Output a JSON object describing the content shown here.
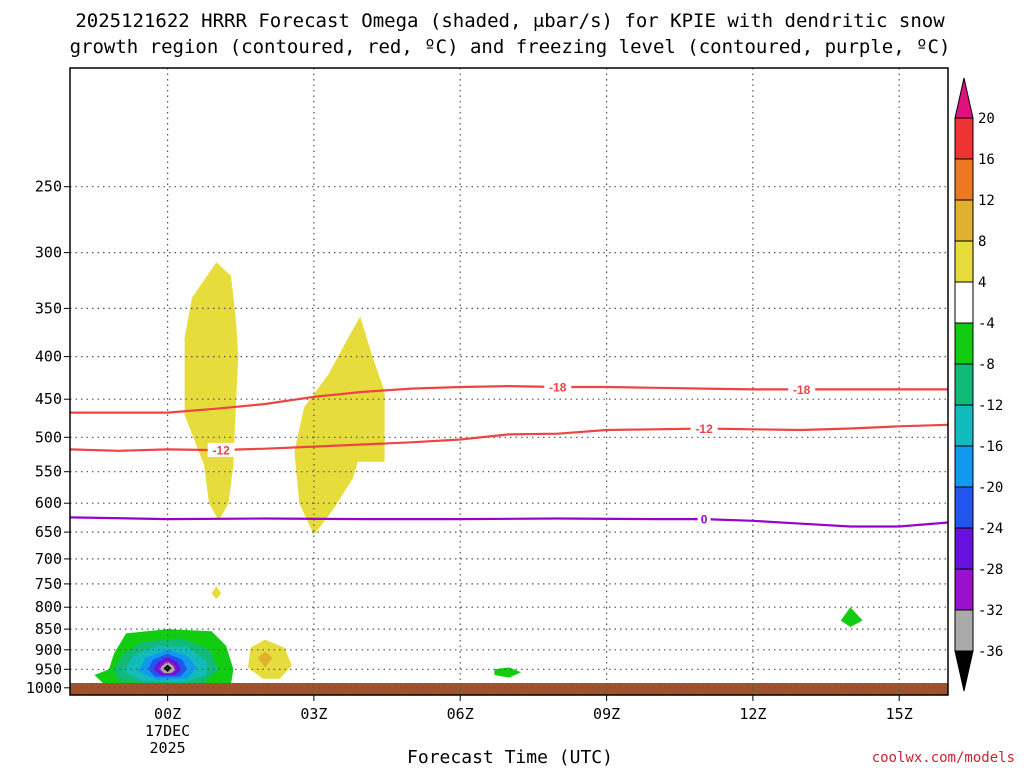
{
  "title_line1": "2025121622 HRRR Forecast Omega (shaded, μbar/s) for KPIE with dendritic snow",
  "title_line2": "growth region (contoured, red, ºC) and freezing level (contoured, purple, ºC)",
  "credit": "coolwx.com/models",
  "colors": {
    "credit": "#cc2233",
    "ground": "#a0522d",
    "temp_contour": "#ee4444",
    "freezing_contour": "#9900cc"
  },
  "chart_data": {
    "type": "heatmap",
    "title": "2025121622 HRRR Forecast Omega (shaded, μbar/s) for KPIE with dendritic snow growth region (contoured, red, ºC) and freezing level (contoured, purple, ºC)",
    "xlabel": "Forecast Time (UTC)",
    "ylabel": "",
    "x_range_hours": [
      -2,
      16
    ],
    "y_range_hpa": [
      1020,
      180
    ],
    "y_scale": "log",
    "y_ticks": [
      250,
      300,
      350,
      400,
      450,
      500,
      550,
      600,
      650,
      700,
      750,
      800,
      850,
      900,
      950,
      1000
    ],
    "x_ticks": [
      {
        "hour": 0,
        "label": "00Z",
        "sub1": "17DEC",
        "sub2": "2025"
      },
      {
        "hour": 3,
        "label": "03Z"
      },
      {
        "hour": 6,
        "label": "06Z"
      },
      {
        "hour": 9,
        "label": "09Z"
      },
      {
        "hour": 12,
        "label": "12Z"
      },
      {
        "hour": 15,
        "label": "15Z"
      }
    ],
    "grid": true,
    "colorbar": {
      "labels": [
        "20",
        "16",
        "12",
        "8",
        "4",
        "-4",
        "-8",
        "-12",
        "-16",
        "-20",
        "-24",
        "-28",
        "-32",
        "-36"
      ],
      "bins": [
        {
          "range": [
            20,
            99
          ],
          "color": "#e0117f"
        },
        {
          "range": [
            16,
            20
          ],
          "color": "#ee3333"
        },
        {
          "range": [
            12,
            16
          ],
          "color": "#ee7722"
        },
        {
          "range": [
            8,
            12
          ],
          "color": "#e0b030"
        },
        {
          "range": [
            4,
            8
          ],
          "color": "#e6dc3c"
        },
        {
          "range": [
            -4,
            4
          ],
          "color": "#ffffff"
        },
        {
          "range": [
            -8,
            -4
          ],
          "color": "#11cc11"
        },
        {
          "range": [
            -12,
            -8
          ],
          "color": "#11bb77"
        },
        {
          "range": [
            -16,
            -12
          ],
          "color": "#11bbbb"
        },
        {
          "range": [
            -20,
            -16
          ],
          "color": "#1199ee"
        },
        {
          "range": [
            -24,
            -20
          ],
          "color": "#2255ee"
        },
        {
          "range": [
            -28,
            -24
          ],
          "color": "#6611dd"
        },
        {
          "range": [
            -32,
            -28
          ],
          "color": "#9911cc"
        },
        {
          "range": [
            -36,
            -32
          ],
          "color": "#aaaaaa"
        },
        {
          "range": [
            -99,
            -36
          ],
          "color": "#000000"
        }
      ]
    },
    "contours": [
      {
        "name": "minus-18-isotherm",
        "label": "-18",
        "color": "#ee4444",
        "label_hours": [
          8.0,
          13.0
        ],
        "points": [
          [
            -2,
            467
          ],
          [
            0,
            467
          ],
          [
            1,
            462
          ],
          [
            2,
            456
          ],
          [
            3,
            447
          ],
          [
            4,
            441
          ],
          [
            5,
            437
          ],
          [
            6,
            435
          ],
          [
            7,
            434
          ],
          [
            8,
            435
          ],
          [
            9,
            435
          ],
          [
            10,
            436
          ],
          [
            11,
            437
          ],
          [
            12,
            438
          ],
          [
            13,
            438
          ],
          [
            14,
            438
          ],
          [
            15,
            438
          ],
          [
            16,
            438
          ]
        ]
      },
      {
        "name": "minus-12-isotherm",
        "label": "-12",
        "color": "#ee4444",
        "label_hours": [
          1.1,
          11.0
        ],
        "points": [
          [
            -2,
            517
          ],
          [
            -1,
            519
          ],
          [
            0,
            517
          ],
          [
            1,
            518
          ],
          [
            2,
            516
          ],
          [
            3,
            513
          ],
          [
            4,
            510
          ],
          [
            5,
            507
          ],
          [
            6,
            503
          ],
          [
            7,
            496
          ],
          [
            8,
            495
          ],
          [
            9,
            490
          ],
          [
            10,
            489
          ],
          [
            11,
            488
          ],
          [
            12,
            489
          ],
          [
            13,
            490
          ],
          [
            14,
            488
          ],
          [
            15,
            485
          ],
          [
            16,
            483
          ]
        ]
      },
      {
        "name": "freezing-level",
        "label": "0",
        "color": "#9900cc",
        "label_hours": [
          11.0
        ],
        "points": [
          [
            -2,
            624
          ],
          [
            0,
            627
          ],
          [
            2,
            626
          ],
          [
            4,
            627
          ],
          [
            6,
            627
          ],
          [
            8,
            626
          ],
          [
            10,
            627
          ],
          [
            11,
            627
          ],
          [
            12,
            630
          ],
          [
            13,
            635
          ],
          [
            14,
            640
          ],
          [
            15,
            640
          ],
          [
            16,
            633
          ]
        ]
      }
    ],
    "shaded_regions": [
      {
        "name": "upward-motion-01z",
        "value_range": [
          4,
          8
        ],
        "color": "#e6dc3c",
        "points": [
          [
            1.0,
            308
          ],
          [
            1.3,
            320
          ],
          [
            1.4,
            360
          ],
          [
            1.45,
            400
          ],
          [
            1.4,
            460
          ],
          [
            1.35,
            540
          ],
          [
            1.25,
            600
          ],
          [
            1.05,
            630
          ],
          [
            0.85,
            600
          ],
          [
            0.75,
            540
          ],
          [
            0.35,
            470
          ],
          [
            0.35,
            380
          ],
          [
            0.5,
            340
          ]
        ]
      },
      {
        "name": "upward-motion-04z",
        "value_range": [
          4,
          8
        ],
        "color": "#e6dc3c",
        "points": [
          [
            3.95,
            358
          ],
          [
            4.2,
            400
          ],
          [
            4.45,
            440
          ],
          [
            4.45,
            535
          ],
          [
            3.9,
            535
          ],
          [
            3.8,
            560
          ],
          [
            3.4,
            610
          ],
          [
            3.0,
            655
          ],
          [
            2.7,
            600
          ],
          [
            2.6,
            520
          ],
          [
            2.8,
            460
          ],
          [
            3.3,
            420
          ],
          [
            3.7,
            380
          ]
        ]
      },
      {
        "name": "upward-motion-blip-01z",
        "value_range": [
          4,
          8
        ],
        "color": "#e6dc3c",
        "points": [
          [
            1.0,
            755
          ],
          [
            1.1,
            770
          ],
          [
            1.0,
            782
          ],
          [
            0.9,
            770
          ]
        ]
      },
      {
        "name": "upward-motion-02z",
        "value_range": [
          4,
          8
        ],
        "color": "#e6dc3c",
        "points": [
          [
            2.0,
            875
          ],
          [
            2.4,
            895
          ],
          [
            2.55,
            940
          ],
          [
            2.3,
            975
          ],
          [
            1.95,
            975
          ],
          [
            1.65,
            945
          ],
          [
            1.7,
            895
          ]
        ]
      },
      {
        "name": "upward-motion-02z-core",
        "value_range": [
          8,
          12
        ],
        "color": "#e0b030",
        "points": [
          [
            2.0,
            905
          ],
          [
            2.15,
            920
          ],
          [
            2.0,
            945
          ],
          [
            1.85,
            920
          ]
        ]
      },
      {
        "name": "downward-motion-07z",
        "value_range": [
          -8,
          -4
        ],
        "color": "#11cc11",
        "points": [
          [
            7.0,
            945
          ],
          [
            7.25,
            958
          ],
          [
            7.0,
            972
          ],
          [
            6.7,
            965
          ],
          [
            6.7,
            950
          ]
        ]
      },
      {
        "name": "downward-motion-14z",
        "value_range": [
          -8,
          -4
        ],
        "color": "#11cc11",
        "points": [
          [
            14.0,
            800
          ],
          [
            14.25,
            830
          ],
          [
            14.0,
            845
          ],
          [
            13.8,
            830
          ]
        ]
      },
      {
        "name": "downward-motion-00z-l1",
        "value_range": [
          -8,
          -4
        ],
        "color": "#11cc11",
        "points": [
          [
            -0.85,
            860
          ],
          [
            0.0,
            850
          ],
          [
            0.9,
            855
          ],
          [
            1.2,
            890
          ],
          [
            1.35,
            950
          ],
          [
            1.3,
            990
          ],
          [
            0.5,
            1000
          ],
          [
            -0.5,
            998
          ],
          [
            -1.3,
            990
          ],
          [
            -1.5,
            965
          ],
          [
            -1.2,
            950
          ],
          [
            -1.1,
            910
          ]
        ]
      },
      {
        "name": "downward-motion-00z-l2",
        "value_range": [
          -12,
          -8
        ],
        "color": "#11bb77",
        "points": [
          [
            -0.5,
            880
          ],
          [
            0.3,
            872
          ],
          [
            0.85,
            900
          ],
          [
            1.05,
            950
          ],
          [
            0.7,
            990
          ],
          [
            -0.3,
            990
          ],
          [
            -1.0,
            980
          ],
          [
            -1.1,
            950
          ],
          [
            -0.9,
            910
          ]
        ]
      },
      {
        "name": "downward-motion-00z-l3",
        "value_range": [
          -16,
          -12
        ],
        "color": "#11bbbb",
        "points": [
          [
            -0.2,
            890
          ],
          [
            0.4,
            893
          ],
          [
            0.8,
            930
          ],
          [
            0.8,
            965
          ],
          [
            0.3,
            985
          ],
          [
            -0.5,
            982
          ],
          [
            -0.9,
            955
          ],
          [
            -0.7,
            915
          ]
        ]
      },
      {
        "name": "downward-motion-00z-l4",
        "value_range": [
          -20,
          -16
        ],
        "color": "#1199ee",
        "points": [
          [
            0.0,
            900
          ],
          [
            0.4,
            915
          ],
          [
            0.6,
            945
          ],
          [
            0.4,
            975
          ],
          [
            -0.2,
            978
          ],
          [
            -0.6,
            955
          ],
          [
            -0.45,
            920
          ]
        ]
      },
      {
        "name": "downward-motion-00z-l5",
        "value_range": [
          -24,
          -20
        ],
        "color": "#2255ee",
        "points": [
          [
            0.0,
            910
          ],
          [
            0.3,
            925
          ],
          [
            0.4,
            950
          ],
          [
            0.25,
            970
          ],
          [
            -0.25,
            970
          ],
          [
            -0.4,
            950
          ],
          [
            -0.3,
            925
          ]
        ]
      },
      {
        "name": "downward-motion-00z-l6",
        "value_range": [
          -28,
          -24
        ],
        "color": "#6611dd",
        "points": [
          [
            0.0,
            918
          ],
          [
            0.2,
            932
          ],
          [
            0.28,
            952
          ],
          [
            0.15,
            965
          ],
          [
            -0.15,
            965
          ],
          [
            -0.28,
            950
          ],
          [
            -0.2,
            932
          ]
        ]
      },
      {
        "name": "downward-motion-00z-l7",
        "value_range": [
          -32,
          -28
        ],
        "color": "#9911cc",
        "points": [
          [
            0.0,
            925
          ],
          [
            0.15,
            938
          ],
          [
            0.2,
            952
          ],
          [
            0.1,
            962
          ],
          [
            -0.1,
            962
          ],
          [
            -0.2,
            950
          ],
          [
            -0.15,
            937
          ]
        ]
      },
      {
        "name": "downward-motion-00z-l8",
        "value_range": [
          -36,
          -32
        ],
        "color": "#aaaaaa",
        "points": [
          [
            0.0,
            930
          ],
          [
            0.12,
            942
          ],
          [
            0.15,
            952
          ],
          [
            0.07,
            960
          ],
          [
            -0.07,
            960
          ],
          [
            -0.15,
            950
          ],
          [
            -0.12,
            942
          ]
        ]
      },
      {
        "name": "downward-motion-00z-core",
        "value_range": [
          -99,
          -36
        ],
        "color": "#000000",
        "points": [
          [
            0.0,
            938
          ],
          [
            0.08,
            947
          ],
          [
            0.0,
            957
          ],
          [
            -0.08,
            947
          ]
        ]
      }
    ]
  }
}
